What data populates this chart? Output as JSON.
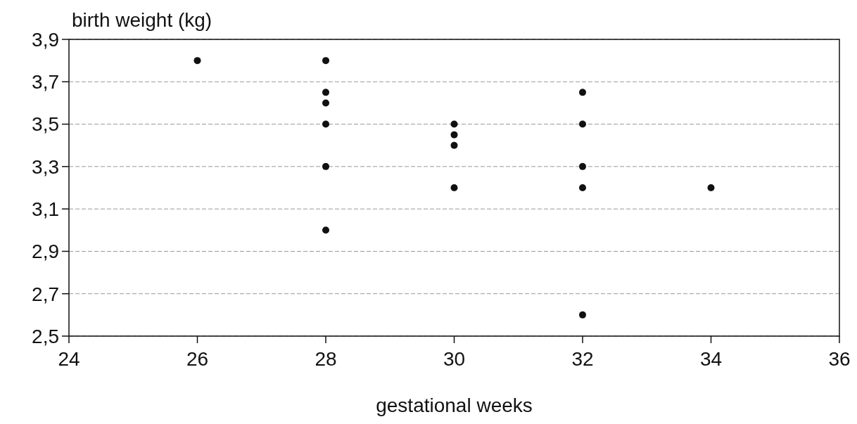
{
  "chart_data": {
    "type": "scatter",
    "xlabel": "gestational weeks",
    "ylabel": "birth weight (kg)",
    "x": [
      26,
      28,
      28,
      28,
      28,
      28,
      28,
      30,
      30,
      30,
      30,
      32,
      32,
      32,
      32,
      32,
      34
    ],
    "values": [
      3.8,
      3.8,
      3.65,
      3.6,
      3.5,
      3.3,
      3.0,
      3.5,
      3.45,
      3.4,
      3.2,
      3.65,
      3.5,
      3.3,
      3.2,
      2.6,
      3.2
    ],
    "color": "#111111",
    "marker": "circle",
    "grid": "y",
    "xlim": [
      24,
      36
    ],
    "xticks": [
      24,
      26,
      28,
      30,
      32,
      34,
      36
    ],
    "ylim": [
      2.5,
      3.9
    ],
    "yticks": [
      {
        "value": 2.5,
        "label": "2,5"
      },
      {
        "value": 2.7,
        "label": "2,7"
      },
      {
        "value": 2.9,
        "label": "2,9"
      },
      {
        "value": 3.1,
        "label": "3,1"
      },
      {
        "value": 3.3,
        "label": "3,3"
      },
      {
        "value": 3.5,
        "label": "3,5"
      },
      {
        "value": 3.7,
        "label": "3,7"
      },
      {
        "value": 3.9,
        "label": "3,9"
      }
    ]
  }
}
